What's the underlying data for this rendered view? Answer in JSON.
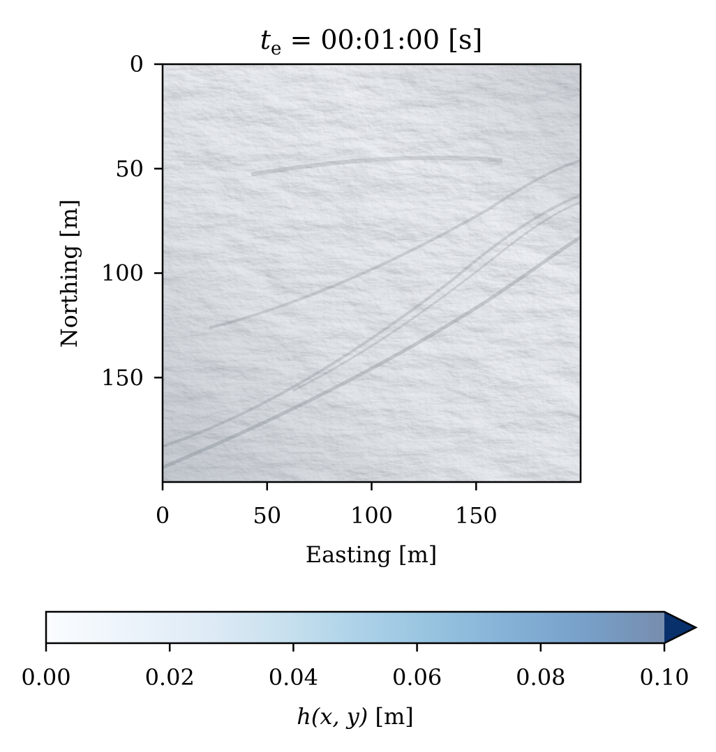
{
  "chart_data": {
    "type": "heatmap",
    "title": {
      "symbol": "t",
      "subscript": "e",
      "rest": " = 00:01:00 [s]"
    },
    "xlabel": "Easting [m]",
    "ylabel": "Northing [m]",
    "xlim": [
      0,
      200
    ],
    "ylim": [
      200,
      0
    ],
    "x_ticks": [
      0,
      50,
      100,
      150
    ],
    "x_tick_labels": [
      "0",
      "50",
      "100",
      "150"
    ],
    "y_ticks": [
      0,
      50,
      100,
      150
    ],
    "y_tick_labels": [
      "0",
      "50",
      "100",
      "150"
    ],
    "background": "grey hillshade terrain",
    "colorbar": {
      "label": "h(x, y) [m]",
      "label_parts": {
        "func": "h",
        "args": "(x, y)",
        "unit": " [m]"
      },
      "range": [
        0,
        0.1
      ],
      "extend": "max",
      "ticks": [
        0.0,
        0.02,
        0.04,
        0.06,
        0.08,
        0.1
      ],
      "tick_labels": [
        "0.00",
        "0.02",
        "0.04",
        "0.06",
        "0.08",
        "0.10"
      ],
      "colormap": [
        "#f7fbff",
        "#deebf7",
        "#c6dbef",
        "#9ecae1",
        "#6baed6",
        "#4292c6",
        "#2171b5",
        "#08519c",
        "#08306b"
      ],
      "alpha": 0.5
    }
  }
}
